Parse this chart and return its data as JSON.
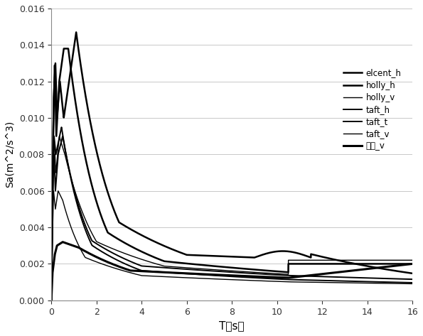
{
  "title": "",
  "xlabel": "T（s）",
  "ylabel": "Sa(m^2/s^3)",
  "xlim": [
    0,
    16
  ],
  "ylim": [
    0,
    0.016
  ],
  "xticks": [
    0,
    2,
    4,
    6,
    8,
    10,
    12,
    14,
    16
  ],
  "yticks": [
    0,
    0.002,
    0.004,
    0.006,
    0.008,
    0.01,
    0.012,
    0.014,
    0.016
  ],
  "background_color": "#ffffff",
  "grid_color": "#c8c8c8",
  "legend_labels": [
    "elcent_h",
    "holly_h",
    "holly_v",
    "taft_h",
    "taft_t",
    "taft_v",
    "天津_v"
  ],
  "line_color": "#000000",
  "linewidths": [
    1.8,
    1.8,
    1.0,
    1.4,
    1.4,
    1.0,
    2.2
  ]
}
